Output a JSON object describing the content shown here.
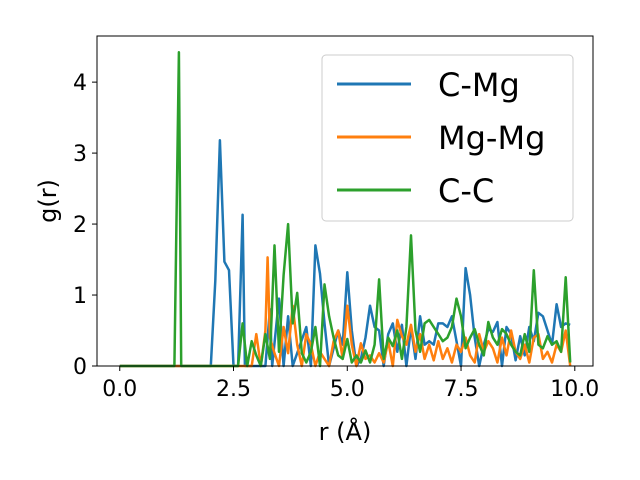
{
  "chart_data": {
    "type": "line",
    "xlabel": "r (Å)",
    "ylabel": "g(r)",
    "xlim": [
      -0.5,
      10.4
    ],
    "ylim": [
      0,
      4.65
    ],
    "xticks": [
      "0.0",
      "2.5",
      "5.0",
      "7.5",
      "10.0"
    ],
    "xtick_values": [
      0,
      2.5,
      5,
      7.5,
      10
    ],
    "yticks": [
      "0",
      "1",
      "2",
      "3",
      "4"
    ],
    "ytick_values": [
      0,
      1,
      2,
      3,
      4
    ],
    "grid": false,
    "legend_position": "top-right",
    "series": [
      {
        "name": "C-Mg",
        "color": "#1f77b4",
        "points": [
          [
            0,
            0
          ],
          [
            2.0,
            0
          ],
          [
            2.1,
            1.2
          ],
          [
            2.2,
            3.18
          ],
          [
            2.3,
            1.47
          ],
          [
            2.4,
            1.35
          ],
          [
            2.5,
            0
          ],
          [
            2.6,
            0
          ],
          [
            2.7,
            2.13
          ],
          [
            2.75,
            0
          ],
          [
            3.2,
            0
          ],
          [
            3.3,
            0.8
          ],
          [
            3.35,
            0
          ],
          [
            3.5,
            0.95
          ],
          [
            3.6,
            0
          ],
          [
            3.7,
            0.7
          ],
          [
            3.8,
            0
          ],
          [
            4.1,
            0.55
          ],
          [
            4.2,
            0
          ],
          [
            4.3,
            1.7
          ],
          [
            4.4,
            1.3
          ],
          [
            4.5,
            0.6
          ],
          [
            4.6,
            0
          ],
          [
            4.8,
            0.5
          ],
          [
            4.9,
            0.3
          ],
          [
            5.0,
            1.32
          ],
          [
            5.1,
            0.5
          ],
          [
            5.2,
            0
          ],
          [
            5.3,
            0.1
          ],
          [
            5.4,
            0.4
          ],
          [
            5.5,
            0.85
          ],
          [
            5.6,
            0.55
          ],
          [
            5.7,
            0.5
          ],
          [
            5.8,
            0
          ],
          [
            5.9,
            0.45
          ],
          [
            6.0,
            0.6
          ],
          [
            6.1,
            0.2
          ],
          [
            6.2,
            0.58
          ],
          [
            6.3,
            0
          ],
          [
            6.4,
            0.55
          ],
          [
            6.5,
            0.1
          ],
          [
            6.6,
            0.7
          ],
          [
            6.7,
            0.3
          ],
          [
            6.8,
            0.35
          ],
          [
            6.9,
            0.3
          ],
          [
            7.0,
            0.6
          ],
          [
            7.1,
            0.6
          ],
          [
            7.2,
            0.55
          ],
          [
            7.3,
            0.7
          ],
          [
            7.4,
            0.35
          ],
          [
            7.5,
            0
          ],
          [
            7.6,
            1.38
          ],
          [
            7.7,
            1.0
          ],
          [
            7.8,
            0.4
          ],
          [
            7.9,
            0
          ],
          [
            8.0,
            0.3
          ],
          [
            8.1,
            0.52
          ],
          [
            8.2,
            0.48
          ],
          [
            8.3,
            0.62
          ],
          [
            8.4,
            0
          ],
          [
            8.5,
            0.55
          ],
          [
            8.6,
            0.45
          ],
          [
            8.7,
            0.08
          ],
          [
            8.8,
            0.42
          ],
          [
            8.9,
            0.15
          ],
          [
            9.0,
            0.55
          ],
          [
            9.1,
            0.35
          ],
          [
            9.2,
            0.75
          ],
          [
            9.3,
            0.7
          ],
          [
            9.4,
            0.5
          ],
          [
            9.5,
            0.3
          ],
          [
            9.6,
            0.87
          ],
          [
            9.7,
            0.55
          ],
          [
            9.8,
            0.6
          ],
          [
            9.9,
            0.58
          ]
        ]
      },
      {
        "name": "Mg-Mg",
        "color": "#ff7f0e",
        "points": [
          [
            0,
            0
          ],
          [
            2.9,
            0
          ],
          [
            3.0,
            0.45
          ],
          [
            3.1,
            0
          ],
          [
            3.2,
            0.5
          ],
          [
            3.25,
            1.53
          ],
          [
            3.3,
            0.4
          ],
          [
            3.4,
            0.18
          ],
          [
            3.5,
            0
          ],
          [
            3.6,
            0.55
          ],
          [
            3.7,
            0.18
          ],
          [
            3.8,
            0.85
          ],
          [
            3.9,
            0.3
          ],
          [
            4.0,
            0
          ],
          [
            4.1,
            0.45
          ],
          [
            4.2,
            0.3
          ],
          [
            4.3,
            0
          ],
          [
            4.4,
            0.2
          ],
          [
            4.5,
            0.1
          ],
          [
            4.6,
            0
          ],
          [
            4.7,
            0.35
          ],
          [
            4.8,
            0.5
          ],
          [
            4.9,
            0.1
          ],
          [
            5.0,
            0.85
          ],
          [
            5.1,
            0.3
          ],
          [
            5.2,
            0
          ],
          [
            5.3,
            0.32
          ],
          [
            5.4,
            0.1
          ],
          [
            5.5,
            0.15
          ],
          [
            5.6,
            0.05
          ],
          [
            5.7,
            0.18
          ],
          [
            5.8,
            0.05
          ],
          [
            5.9,
            0.35
          ],
          [
            6.0,
            0
          ],
          [
            6.1,
            0.65
          ],
          [
            6.2,
            0.42
          ],
          [
            6.3,
            0.3
          ],
          [
            6.4,
            0.58
          ],
          [
            6.5,
            0.2
          ],
          [
            6.6,
            0.45
          ],
          [
            6.7,
            0.1
          ],
          [
            6.8,
            0.3
          ],
          [
            6.9,
            0.08
          ],
          [
            7.0,
            0.35
          ],
          [
            7.1,
            0.1
          ],
          [
            7.2,
            0.25
          ],
          [
            7.3,
            0.05
          ],
          [
            7.4,
            0.3
          ],
          [
            7.5,
            0.2
          ],
          [
            7.6,
            0.4
          ],
          [
            7.7,
            0.15
          ],
          [
            7.8,
            0.05
          ],
          [
            7.9,
            0.45
          ],
          [
            8.0,
            0.2
          ],
          [
            8.1,
            0.35
          ],
          [
            8.2,
            0.25
          ],
          [
            8.3,
            0.05
          ],
          [
            8.4,
            0.4
          ],
          [
            8.5,
            0.15
          ],
          [
            8.6,
            0.5
          ],
          [
            8.7,
            0.2
          ],
          [
            8.8,
            0.1
          ],
          [
            8.9,
            0.3
          ],
          [
            9.0,
            0.05
          ],
          [
            9.1,
            0.4
          ],
          [
            9.2,
            0.45
          ],
          [
            9.3,
            0.1
          ],
          [
            9.4,
            0.2
          ],
          [
            9.5,
            0.05
          ],
          [
            9.6,
            0.3
          ],
          [
            9.7,
            0.2
          ],
          [
            9.8,
            0.5
          ],
          [
            9.9,
            0
          ]
        ]
      },
      {
        "name": "C-C",
        "color": "#2ca02c",
        "points": [
          [
            0,
            0
          ],
          [
            1.2,
            0
          ],
          [
            1.3,
            4.42
          ],
          [
            1.35,
            0
          ],
          [
            2.6,
            0
          ],
          [
            2.7,
            0.6
          ],
          [
            2.8,
            0
          ],
          [
            2.9,
            0.35
          ],
          [
            3.0,
            0.15
          ],
          [
            3.1,
            0
          ],
          [
            3.2,
            0.45
          ],
          [
            3.3,
            0.1
          ],
          [
            3.4,
            1.7
          ],
          [
            3.5,
            0.2
          ],
          [
            3.6,
            1.28
          ],
          [
            3.7,
            2.0
          ],
          [
            3.8,
            0.6
          ],
          [
            3.9,
            1.03
          ],
          [
            4.0,
            0.18
          ],
          [
            4.1,
            0.05
          ],
          [
            4.2,
            0.2
          ],
          [
            4.3,
            0.55
          ],
          [
            4.4,
            0
          ],
          [
            4.5,
            1.15
          ],
          [
            4.6,
            0.7
          ],
          [
            4.7,
            0.4
          ],
          [
            4.8,
            0.15
          ],
          [
            4.9,
            0.1
          ],
          [
            5.0,
            0.38
          ],
          [
            5.1,
            0.05
          ],
          [
            5.2,
            0.15
          ],
          [
            5.3,
            0.05
          ],
          [
            5.4,
            0.22
          ],
          [
            5.5,
            0.05
          ],
          [
            5.6,
            0.3
          ],
          [
            5.7,
            1.22
          ],
          [
            5.8,
            0.1
          ],
          [
            5.9,
            0.4
          ],
          [
            6.0,
            0.28
          ],
          [
            6.1,
            0.5
          ],
          [
            6.2,
            0.1
          ],
          [
            6.3,
            0.55
          ],
          [
            6.4,
            1.84
          ],
          [
            6.5,
            0.5
          ],
          [
            6.6,
            0.2
          ],
          [
            6.7,
            0.6
          ],
          [
            6.8,
            0.65
          ],
          [
            6.9,
            0.55
          ],
          [
            7.0,
            0.45
          ],
          [
            7.1,
            0.35
          ],
          [
            7.2,
            0.4
          ],
          [
            7.3,
            0.55
          ],
          [
            7.4,
            0.95
          ],
          [
            7.5,
            0.7
          ],
          [
            7.6,
            0.25
          ],
          [
            7.7,
            0.4
          ],
          [
            7.8,
            0.52
          ],
          [
            7.9,
            0.3
          ],
          [
            8.0,
            0.15
          ],
          [
            8.1,
            0.62
          ],
          [
            8.2,
            0.4
          ],
          [
            8.3,
            0.3
          ],
          [
            8.4,
            0.52
          ],
          [
            8.5,
            0.45
          ],
          [
            8.6,
            0.3
          ],
          [
            8.7,
            0.2
          ],
          [
            8.8,
            0.15
          ],
          [
            8.9,
            0.45
          ],
          [
            9.0,
            0.2
          ],
          [
            9.1,
            1.35
          ],
          [
            9.2,
            0.3
          ],
          [
            9.3,
            0.25
          ],
          [
            9.4,
            0.42
          ],
          [
            9.5,
            0.3
          ],
          [
            9.6,
            0.35
          ],
          [
            9.7,
            0.2
          ],
          [
            9.8,
            1.25
          ],
          [
            9.9,
            0.05
          ]
        ]
      }
    ]
  }
}
